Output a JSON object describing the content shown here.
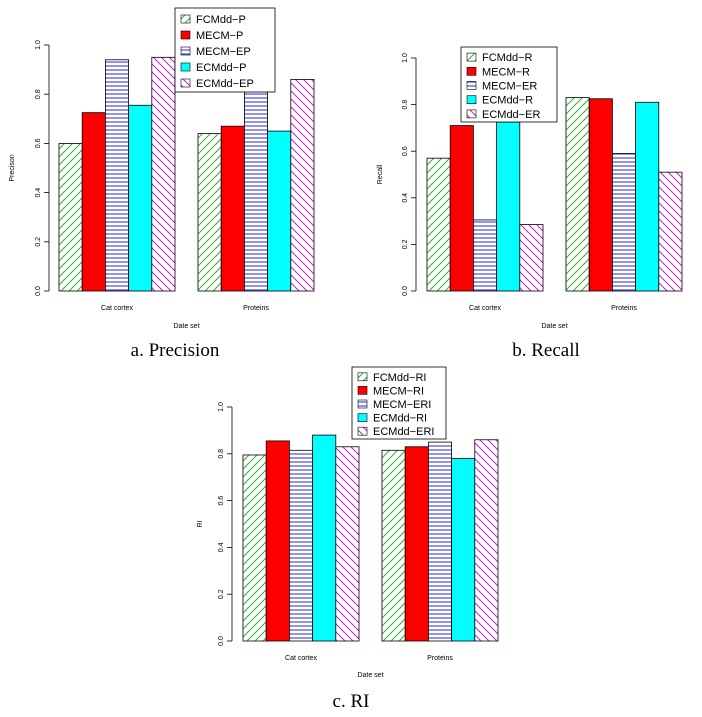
{
  "patterns": {
    "FCMdd": {
      "kind": "diag-up",
      "color": "#2db52d"
    },
    "MECM": {
      "kind": "solid",
      "color": "#ff0000"
    },
    "MECM-E": {
      "kind": "horiz",
      "color": "#2929d6"
    },
    "ECMdd": {
      "kind": "solid",
      "color": "#00ffff"
    },
    "ECMdd-E": {
      "kind": "diag-down",
      "color": "#c81ecd"
    }
  },
  "chart_data": [
    {
      "type": "bar",
      "caption": "a. Precision",
      "xlabel": "Date set",
      "ylabel": "Precison",
      "ylim": [
        0,
        1
      ],
      "yticks": [
        "0.0",
        "0.2",
        "0.4",
        "0.6",
        "0.8",
        "1.0"
      ],
      "categories": [
        "Cat cortex",
        "Proteins"
      ],
      "legend_position": "top",
      "series": [
        {
          "name": "FCMdd−P",
          "pattern": "FCMdd",
          "values": [
            0.6,
            0.64
          ]
        },
        {
          "name": "MECM−P",
          "pattern": "MECM",
          "values": [
            0.725,
            0.67
          ]
        },
        {
          "name": "MECM−EP",
          "pattern": "MECM-E",
          "values": [
            0.94,
            0.855
          ]
        },
        {
          "name": "ECMdd−P",
          "pattern": "ECMdd",
          "values": [
            0.755,
            0.65
          ]
        },
        {
          "name": "ECMdd−EP",
          "pattern": "ECMdd-E",
          "values": [
            0.95,
            0.86
          ]
        }
      ]
    },
    {
      "type": "bar",
      "caption": "b. Recall",
      "xlabel": "Date set",
      "ylabel": "Recall",
      "ylim": [
        0,
        1
      ],
      "yticks": [
        "0.0",
        "0.2",
        "0.4",
        "0.6",
        "0.8",
        "1.0"
      ],
      "categories": [
        "Cat cortex",
        "Proteins"
      ],
      "legend_position": "top",
      "series": [
        {
          "name": "FCMdd−R",
          "pattern": "FCMdd",
          "values": [
            0.57,
            0.83
          ]
        },
        {
          "name": "MECM−R",
          "pattern": "MECM",
          "values": [
            0.71,
            0.825
          ]
        },
        {
          "name": "MECM−ER",
          "pattern": "MECM-E",
          "values": [
            0.305,
            0.59
          ]
        },
        {
          "name": "ECMdd−R",
          "pattern": "ECMdd",
          "values": [
            0.725,
            0.81
          ]
        },
        {
          "name": "ECMdd−ER",
          "pattern": "ECMdd-E",
          "values": [
            0.285,
            0.51
          ]
        }
      ]
    },
    {
      "type": "bar",
      "caption": "c. RI",
      "xlabel": "Date set",
      "ylabel": "RI",
      "ylim": [
        0,
        1
      ],
      "yticks": [
        "0.0",
        "0.2",
        "0.4",
        "0.6",
        "0.8",
        "1.0"
      ],
      "categories": [
        "Cat cortex",
        "Proteins"
      ],
      "legend_position": "top",
      "series": [
        {
          "name": "FCMdd−RI",
          "pattern": "FCMdd",
          "values": [
            0.795,
            0.815
          ]
        },
        {
          "name": "MECM−RI",
          "pattern": "MECM",
          "values": [
            0.855,
            0.83
          ]
        },
        {
          "name": "MECM−ERI",
          "pattern": "MECM-E",
          "values": [
            0.815,
            0.85
          ]
        },
        {
          "name": "ECMdd−RI",
          "pattern": "ECMdd",
          "values": [
            0.88,
            0.78
          ]
        },
        {
          "name": "ECMdd−ERI",
          "pattern": "ECMdd-E",
          "values": [
            0.83,
            0.86
          ]
        }
      ]
    }
  ]
}
